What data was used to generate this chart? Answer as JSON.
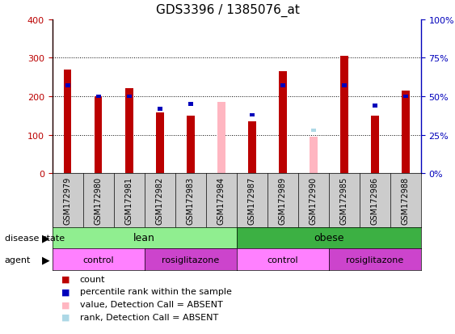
{
  "title": "GDS3396 / 1385076_at",
  "samples": [
    "GSM172979",
    "GSM172980",
    "GSM172981",
    "GSM172982",
    "GSM172983",
    "GSM172984",
    "GSM172987",
    "GSM172989",
    "GSM172990",
    "GSM172985",
    "GSM172986",
    "GSM172988"
  ],
  "count_values": [
    270,
    200,
    222,
    158,
    150,
    0,
    135,
    265,
    0,
    305,
    150,
    215
  ],
  "absent_value_values": [
    0,
    0,
    0,
    0,
    0,
    185,
    0,
    0,
    95,
    0,
    0,
    0
  ],
  "percentile_rank": [
    57,
    50,
    50,
    42,
    45,
    0,
    38,
    57,
    0,
    57,
    44,
    50
  ],
  "absent_rank_values": [
    0,
    0,
    0,
    0,
    0,
    0,
    0,
    0,
    28,
    0,
    0,
    0
  ],
  "ylim_left": [
    0,
    400
  ],
  "ylim_right": [
    0,
    100
  ],
  "left_ticks": [
    0,
    100,
    200,
    300,
    400
  ],
  "right_ticks": [
    0,
    25,
    50,
    75,
    100
  ],
  "left_tick_labels": [
    "0",
    "100",
    "200",
    "300",
    "400"
  ],
  "right_tick_labels": [
    "0%",
    "25%",
    "50%",
    "75%",
    "100%"
  ],
  "grid_lines": [
    100,
    200,
    300
  ],
  "lean_color": "#90EE90",
  "obese_color": "#3CB043",
  "agent_control_color": "#FF80FF",
  "agent_rosi_color": "#CC44CC",
  "bar_width": 0.25,
  "count_color": "#BB0000",
  "absent_value_color": "#FFB6C1",
  "percentile_color": "#0000BB",
  "absent_rank_color": "#ADD8E6",
  "bg_color": "#FFFFFF",
  "plot_bg_color": "#FFFFFF",
  "xtick_bg_color": "#CCCCCC",
  "legend_items": [
    {
      "label": "count",
      "color": "#BB0000"
    },
    {
      "label": "percentile rank within the sample",
      "color": "#0000BB"
    },
    {
      "label": "value, Detection Call = ABSENT",
      "color": "#FFB6C1"
    },
    {
      "label": "rank, Detection Call = ABSENT",
      "color": "#ADD8E6"
    }
  ]
}
